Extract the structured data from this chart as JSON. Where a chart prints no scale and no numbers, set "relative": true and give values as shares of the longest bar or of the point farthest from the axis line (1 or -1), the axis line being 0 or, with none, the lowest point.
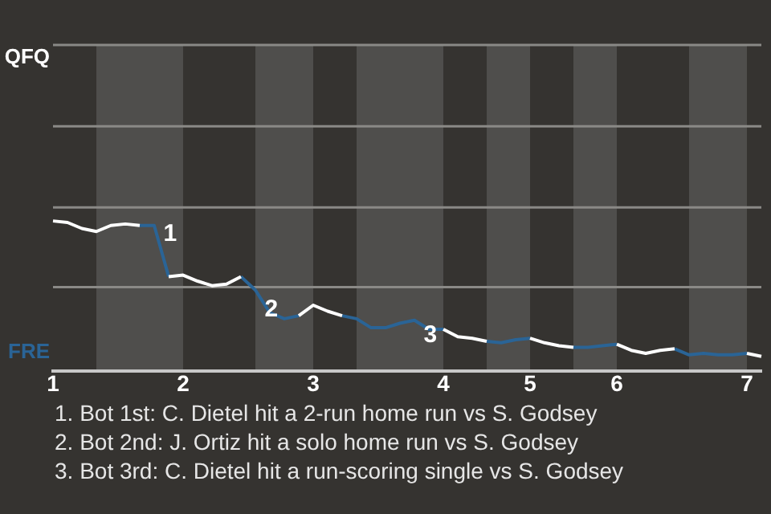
{
  "chart_data": {
    "type": "line",
    "relative": true,
    "categories": [
      "1",
      null,
      null,
      null,
      null,
      null,
      null,
      null,
      null,
      "2",
      null,
      null,
      null,
      null,
      null,
      null,
      null,
      null,
      "3",
      null,
      null,
      null,
      null,
      null,
      null,
      null,
      null,
      "4",
      null,
      null,
      null,
      null,
      null,
      "5",
      null,
      null,
      null,
      null,
      null,
      "6",
      null,
      null,
      null,
      null,
      null,
      null,
      null,
      null,
      "7",
      null
    ],
    "series": [
      {
        "color": "#ffffff",
        "values": [
          1.0,
          0.99,
          0.95,
          0.93,
          0.97,
          0.98,
          0.97,
          null,
          0.63,
          0.64,
          0.6,
          0.57,
          0.58,
          0.63,
          null,
          null,
          null,
          0.37,
          0.44,
          0.4,
          0.37,
          null,
          null,
          null,
          null,
          null,
          null,
          0.28,
          0.23,
          0.22,
          0.2,
          null,
          null,
          0.22,
          0.19,
          0.17,
          0.16,
          null,
          null,
          0.18,
          0.14,
          0.12,
          0.14,
          0.15,
          null,
          null,
          null,
          null,
          0.12,
          0.1
        ]
      },
      {
        "color": "#2a6496",
        "values": [
          null,
          null,
          null,
          null,
          null,
          null,
          0.97,
          0.97,
          0.63,
          null,
          null,
          null,
          null,
          0.63,
          0.54,
          0.39,
          0.35,
          0.37,
          null,
          null,
          0.37,
          0.35,
          0.29,
          0.29,
          0.32,
          0.34,
          0.28,
          0.28,
          null,
          null,
          0.2,
          0.19,
          0.21,
          0.22,
          null,
          null,
          0.16,
          0.16,
          0.17,
          0.18,
          null,
          null,
          null,
          0.15,
          0.11,
          0.12,
          0.11,
          0.11,
          0.12,
          null
        ]
      }
    ],
    "ref_lines": [
      {
        "axis": "y",
        "value": 0.56,
        "color": "#8a8986"
      },
      {
        "axis": "y",
        "value": 1.09,
        "color": "#8a8986"
      },
      {
        "axis": "y",
        "value": 1.63,
        "color": "#8a8986"
      },
      {
        "axis": "y",
        "value": 2.17,
        "color": "#8a8986"
      }
    ],
    "legend": false,
    "marker": "none",
    "line_style": "solid",
    "annotations": [
      "QFQ",
      "FRE",
      "1",
      "2",
      "3",
      "1. Bot 1st: C. Dietel hit a 2-run home run vs S. Godsey",
      "2. Bot 2nd: J. Ortiz hit a solo home run vs S. Godsey",
      "3. Bot 3rd: C. Dietel hit a run-scoring single vs S. Godsey"
    ]
  }
}
